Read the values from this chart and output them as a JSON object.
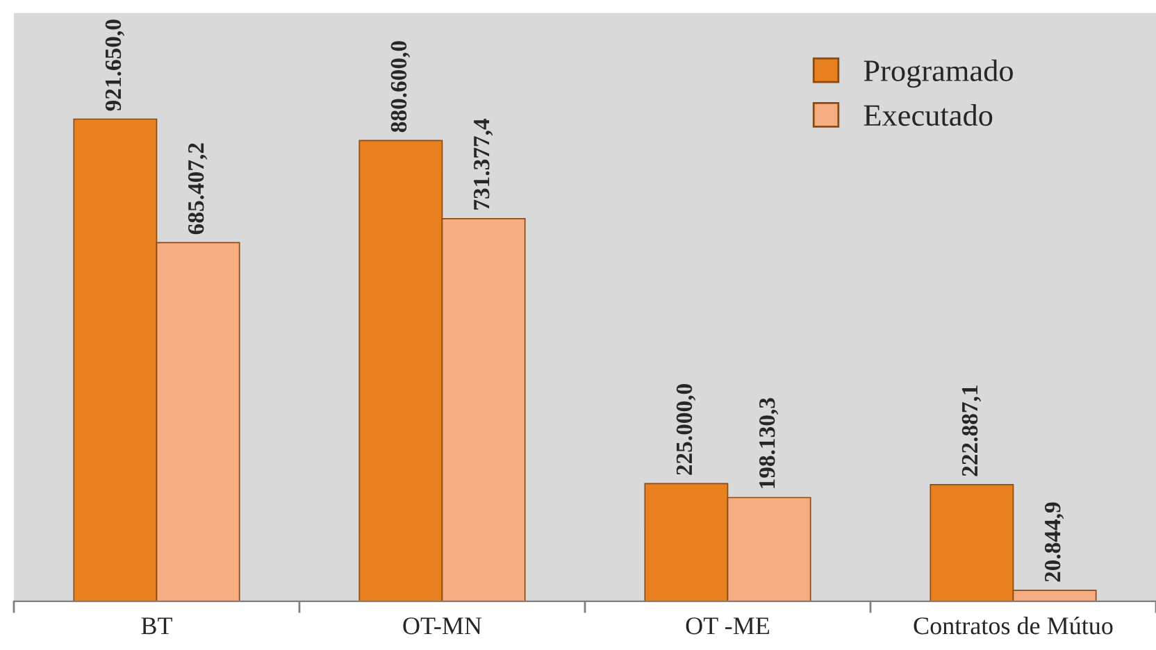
{
  "chart_data": {
    "type": "bar",
    "categories": [
      "BT",
      "OT-MN",
      "OT -ME",
      "Contratos de Mútuo"
    ],
    "series": [
      {
        "name": "Programado",
        "color": "#e8801f",
        "values": [
          921650.0,
          880600.0,
          225000.0,
          222887.1
        ],
        "value_labels": [
          "921.650,0",
          "880.600,0",
          "225.000,0",
          "222.887,1"
        ]
      },
      {
        "name": "Executado",
        "color": "#f7ad82",
        "values": [
          685407.2,
          731377.4,
          198130.3,
          20844.9
        ],
        "value_labels": [
          "685.407,2",
          "731.377,4",
          "198.130,3",
          "20.844,9"
        ]
      }
    ],
    "legend": "top right"
  }
}
